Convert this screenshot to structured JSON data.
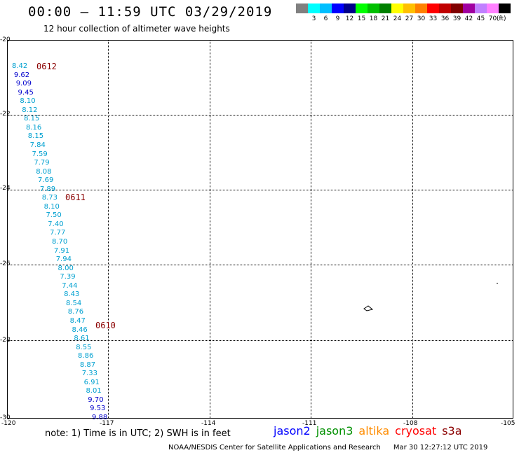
{
  "header": {
    "title": "00:00 – 11:59 UTC 03/29/2019",
    "subtitle": "12 hour collection of altimeter wave heights"
  },
  "legend": {
    "swatches": [
      {
        "color": "#808080",
        "label": ""
      },
      {
        "color": "#00ffff",
        "label": "3"
      },
      {
        "color": "#00bfff",
        "label": "6"
      },
      {
        "color": "#0000ff",
        "label": "9"
      },
      {
        "color": "#00008b",
        "label": "12"
      },
      {
        "color": "#00ff00",
        "label": "15"
      },
      {
        "color": "#00c000",
        "label": "18"
      },
      {
        "color": "#008000",
        "label": "21"
      },
      {
        "color": "#ffff00",
        "label": "24"
      },
      {
        "color": "#ffc000",
        "label": "27"
      },
      {
        "color": "#ff8000",
        "label": "30"
      },
      {
        "color": "#ff0000",
        "label": "33"
      },
      {
        "color": "#c00000",
        "label": "36"
      },
      {
        "color": "#800000",
        "label": "39"
      },
      {
        "color": "#a000a0",
        "label": "42"
      },
      {
        "color": "#c080ff",
        "label": "45"
      },
      {
        "color": "#ff80ff",
        "label": "70"
      },
      {
        "color": "#000000",
        "label": ""
      }
    ],
    "units": "(ft)"
  },
  "axes": {
    "lat_labels": [
      "-20",
      "-22",
      "-24",
      "-26",
      "-28",
      "-30"
    ],
    "lon_labels": [
      "-120",
      "-117",
      "-114",
      "-111",
      "-108",
      "-105"
    ]
  },
  "passes": [
    "0612",
    "0611",
    "0610"
  ],
  "observations": [
    {
      "v": "8.42",
      "c": "#00a0d0"
    },
    {
      "v": "9.62",
      "c": "#0000cc"
    },
    {
      "v": "9.09",
      "c": "#0000cc"
    },
    {
      "v": "9.45",
      "c": "#0000cc"
    },
    {
      "v": "8.10",
      "c": "#00a0d0"
    },
    {
      "v": "8.12",
      "c": "#00a0d0"
    },
    {
      "v": "8.15",
      "c": "#00a0d0"
    },
    {
      "v": "8.16",
      "c": "#00a0d0"
    },
    {
      "v": "8.15",
      "c": "#00a0d0"
    },
    {
      "v": "7.84",
      "c": "#00a0d0"
    },
    {
      "v": "7.59",
      "c": "#00a0d0"
    },
    {
      "v": "7.79",
      "c": "#00a0d0"
    },
    {
      "v": "8.08",
      "c": "#00a0d0"
    },
    {
      "v": "7.69",
      "c": "#00a0d0"
    },
    {
      "v": "7.89",
      "c": "#00a0d0"
    },
    {
      "v": "8.73",
      "c": "#00a0d0"
    },
    {
      "v": "8.10",
      "c": "#00a0d0"
    },
    {
      "v": "7.50",
      "c": "#00a0d0"
    },
    {
      "v": "7.40",
      "c": "#00a0d0"
    },
    {
      "v": "7.77",
      "c": "#00a0d0"
    },
    {
      "v": "8.70",
      "c": "#00a0d0"
    },
    {
      "v": "7.91",
      "c": "#00a0d0"
    },
    {
      "v": "7.94",
      "c": "#00a0d0"
    },
    {
      "v": "8.00",
      "c": "#00a0d0"
    },
    {
      "v": "7.39",
      "c": "#00a0d0"
    },
    {
      "v": "7.44",
      "c": "#00a0d0"
    },
    {
      "v": "8.43",
      "c": "#00a0d0"
    },
    {
      "v": "8.54",
      "c": "#00a0d0"
    },
    {
      "v": "8.76",
      "c": "#00a0d0"
    },
    {
      "v": "8.47",
      "c": "#00a0d0"
    },
    {
      "v": "8.46",
      "c": "#00a0d0"
    },
    {
      "v": "8.61",
      "c": "#00a0d0"
    },
    {
      "v": "8.55",
      "c": "#00a0d0"
    },
    {
      "v": "8.86",
      "c": "#00a0d0"
    },
    {
      "v": "8.87",
      "c": "#00a0d0"
    },
    {
      "v": "7.33",
      "c": "#00a0d0"
    },
    {
      "v": "6.91",
      "c": "#00a0d0"
    },
    {
      "v": "8.01",
      "c": "#00a0d0"
    },
    {
      "v": "9.70",
      "c": "#0000cc"
    },
    {
      "v": "9.53",
      "c": "#0000cc"
    },
    {
      "v": "9.88",
      "c": "#0000cc"
    }
  ],
  "footer": {
    "note": "note: 1) Time is in UTC; 2) SWH is in feet",
    "satellites": [
      {
        "name": "jason2",
        "color": "#0000ff"
      },
      {
        "name": "jason3",
        "color": "#009000"
      },
      {
        "name": "altika",
        "color": "#ff8c00"
      },
      {
        "name": "cryosat",
        "color": "#ff0000"
      },
      {
        "name": "s3a",
        "color": "#8b0000"
      }
    ],
    "credit": "NOAA/NESDIS Center for Satellite Applications and Research",
    "timestamp": "Mar 30 12:27:12 UTC 2019"
  }
}
